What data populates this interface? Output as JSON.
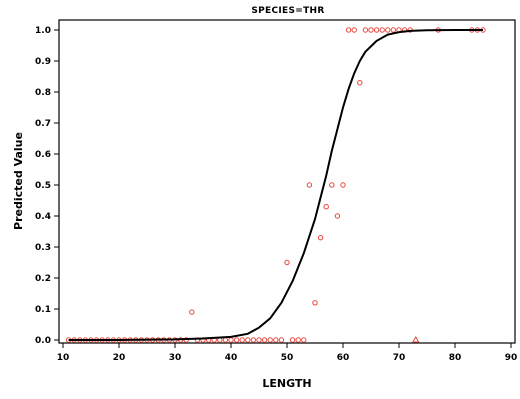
{
  "chart_data": {
    "type": "scatter",
    "title": "SPECIES=THR",
    "xlabel": "LENGTH",
    "ylabel": "Predicted Value",
    "xlim": [
      10,
      90
    ],
    "ylim": [
      0.0,
      1.0
    ],
    "x_ticks": [
      10,
      20,
      30,
      40,
      50,
      60,
      70,
      80,
      90
    ],
    "y_ticks": [
      "0.0",
      "0.1",
      "0.2",
      "0.3",
      "0.4",
      "0.5",
      "0.6",
      "0.7",
      "0.8",
      "0.9",
      "1.0"
    ],
    "grid": false,
    "series": [
      {
        "type": "scatter",
        "marker": "circle",
        "color": "#e8453c",
        "points": [
          [
            11,
            0
          ],
          [
            12,
            0
          ],
          [
            13,
            0
          ],
          [
            14,
            0
          ],
          [
            15,
            0
          ],
          [
            16,
            0
          ],
          [
            17,
            0
          ],
          [
            18,
            0
          ],
          [
            19,
            0
          ],
          [
            20,
            0
          ],
          [
            21,
            0
          ],
          [
            22,
            0
          ],
          [
            23,
            0
          ],
          [
            24,
            0
          ],
          [
            25,
            0
          ],
          [
            26,
            0
          ],
          [
            27,
            0
          ],
          [
            28,
            0
          ],
          [
            29,
            0
          ],
          [
            30,
            0
          ],
          [
            31,
            0
          ],
          [
            32,
            0
          ],
          [
            33,
            0.09
          ],
          [
            34,
            0
          ],
          [
            35,
            0
          ],
          [
            36,
            0
          ],
          [
            37,
            0
          ],
          [
            38,
            0
          ],
          [
            39,
            0
          ],
          [
            40,
            0
          ],
          [
            41,
            0
          ],
          [
            42,
            0
          ],
          [
            43,
            0
          ],
          [
            44,
            0
          ],
          [
            45,
            0
          ],
          [
            46,
            0
          ],
          [
            47,
            0
          ],
          [
            48,
            0
          ],
          [
            49,
            0
          ],
          [
            50,
            0.25
          ],
          [
            51,
            0
          ],
          [
            52,
            0
          ],
          [
            53,
            0
          ],
          [
            54,
            0.5
          ],
          [
            55,
            0.12
          ],
          [
            56,
            0.33
          ],
          [
            57,
            0.43
          ],
          [
            58,
            0.5
          ],
          [
            59,
            0.4
          ],
          [
            60,
            0.5
          ],
          [
            61,
            1
          ],
          [
            62,
            1
          ],
          [
            63,
            0.83
          ],
          [
            64,
            1
          ],
          [
            65,
            1
          ],
          [
            66,
            1
          ],
          [
            67,
            1
          ],
          [
            68,
            1
          ],
          [
            69,
            1
          ],
          [
            70,
            1
          ],
          [
            71,
            1
          ],
          [
            72,
            1
          ],
          [
            77,
            1
          ],
          [
            83,
            1
          ],
          [
            84,
            1
          ],
          [
            85,
            1
          ]
        ]
      },
      {
        "type": "scatter",
        "marker": "triangle",
        "color": "#e8453c",
        "points": [
          [
            73,
            0
          ]
        ]
      },
      {
        "type": "line",
        "color": "#000000",
        "points": [
          [
            11,
            0
          ],
          [
            20,
            0
          ],
          [
            30,
            0.002
          ],
          [
            35,
            0.005
          ],
          [
            40,
            0.01
          ],
          [
            43,
            0.02
          ],
          [
            45,
            0.04
          ],
          [
            47,
            0.07
          ],
          [
            49,
            0.12
          ],
          [
            51,
            0.19
          ],
          [
            53,
            0.28
          ],
          [
            55,
            0.39
          ],
          [
            56,
            0.46
          ],
          [
            57,
            0.53
          ],
          [
            58,
            0.61
          ],
          [
            59,
            0.68
          ],
          [
            60,
            0.75
          ],
          [
            61,
            0.81
          ],
          [
            62,
            0.86
          ],
          [
            63,
            0.9
          ],
          [
            64,
            0.93
          ],
          [
            66,
            0.965
          ],
          [
            68,
            0.985
          ],
          [
            70,
            0.993
          ],
          [
            72,
            0.997
          ],
          [
            75,
            0.999
          ],
          [
            80,
            1.0
          ],
          [
            85,
            1.0
          ]
        ]
      }
    ]
  }
}
